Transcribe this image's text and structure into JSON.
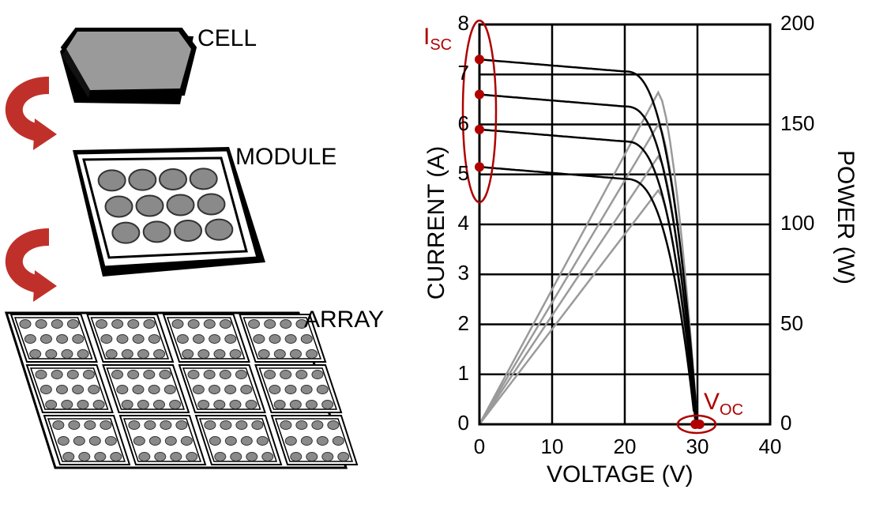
{
  "labels": {
    "cell": "CELL",
    "module": "MODULE",
    "array": "ARRAY"
  },
  "colors": {
    "accent_red": "#b00000",
    "arrow_red": "#c0302a",
    "ink": "#000000",
    "power_curve": "#9a9a9a",
    "tile_gray": "#8a8a8a"
  },
  "chart_data": {
    "type": "line",
    "xlabel": "VOLTAGE (V)",
    "ylabel_left": "CURRENT (A)",
    "ylabel_right": "POWER (W)",
    "xlim": [
      0,
      40
    ],
    "ylim_left": [
      0,
      8
    ],
    "ylim_right": [
      0,
      200
    ],
    "x_ticks": [
      "0",
      "10",
      "20",
      "30",
      "40"
    ],
    "y_ticks_left": [
      "0",
      "1",
      "2",
      "3",
      "4",
      "5",
      "6",
      "7",
      "8"
    ],
    "y_ticks_right": [
      "0",
      "50",
      "100",
      "150",
      "200"
    ],
    "grid": true,
    "annotations": {
      "isc": {
        "main": "I",
        "sub": "SC"
      },
      "voc": {
        "main": "V",
        "sub": "OC"
      }
    },
    "iv_series": [
      {
        "isc": 7.3,
        "voc": 30.0
      },
      {
        "isc": 6.6,
        "voc": 29.9
      },
      {
        "isc": 5.9,
        "voc": 29.8
      },
      {
        "isc": 5.15,
        "voc": 29.7
      }
    ],
    "power_series": [
      {
        "peak_v": 24.6,
        "peak_w": 166
      },
      {
        "peak_v": 24.6,
        "peak_w": 150
      },
      {
        "peak_v": 24.6,
        "peak_w": 134
      },
      {
        "peak_v": 24.6,
        "peak_w": 117
      }
    ]
  }
}
